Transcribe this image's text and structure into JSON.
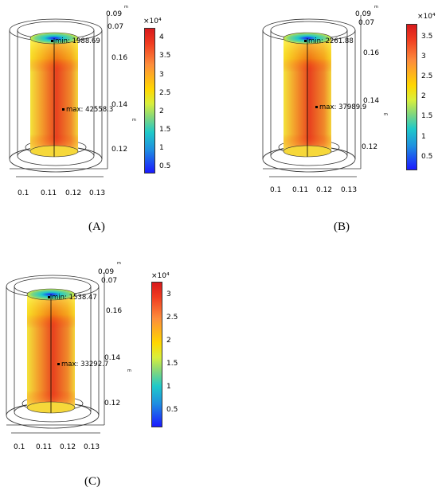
{
  "panels": [
    {
      "caption": "(A)",
      "colorbar_multiplier": "×10⁴",
      "colorbar_ticks": [
        "4",
        "3.5",
        "3",
        "2.5",
        "2",
        "1.5",
        "1",
        "0.5"
      ],
      "min_label": "min: 1988.69",
      "max_label": "max: 42558.3",
      "x_ticks": [
        "0.1",
        "0.11",
        "0.12",
        "0.13"
      ],
      "y_ticks": [
        "0.16",
        "0.14",
        "0.12"
      ],
      "depth_ticks": [
        "0.09",
        "0.07"
      ],
      "unit": "m"
    },
    {
      "caption": "(B)",
      "colorbar_multiplier": "×10⁴",
      "colorbar_ticks": [
        "3.5",
        "3",
        "2.5",
        "2",
        "1.5",
        "1",
        "0.5"
      ],
      "min_label": "min: 2261.88",
      "max_label": "max: 37989.9",
      "x_ticks": [
        "0.1",
        "0.11",
        "0.12",
        "0.13"
      ],
      "y_ticks": [
        "0.16",
        "0.14",
        "0.12"
      ],
      "depth_ticks": [
        "0.09",
        "0.07"
      ],
      "unit": "m"
    },
    {
      "caption": "(C)",
      "colorbar_multiplier": "×10⁴",
      "colorbar_ticks": [
        "3",
        "2.5",
        "2",
        "1.5",
        "1",
        "0.5"
      ],
      "min_label": "min: 1538.47",
      "max_label": "max: 33292.7",
      "x_ticks": [
        "0.1",
        "0.11",
        "0.12",
        "0.13"
      ],
      "y_ticks": [
        "0.16",
        "0.14",
        "0.12"
      ],
      "depth_ticks": [
        "0.09",
        "0.07"
      ],
      "unit": "m"
    }
  ]
}
